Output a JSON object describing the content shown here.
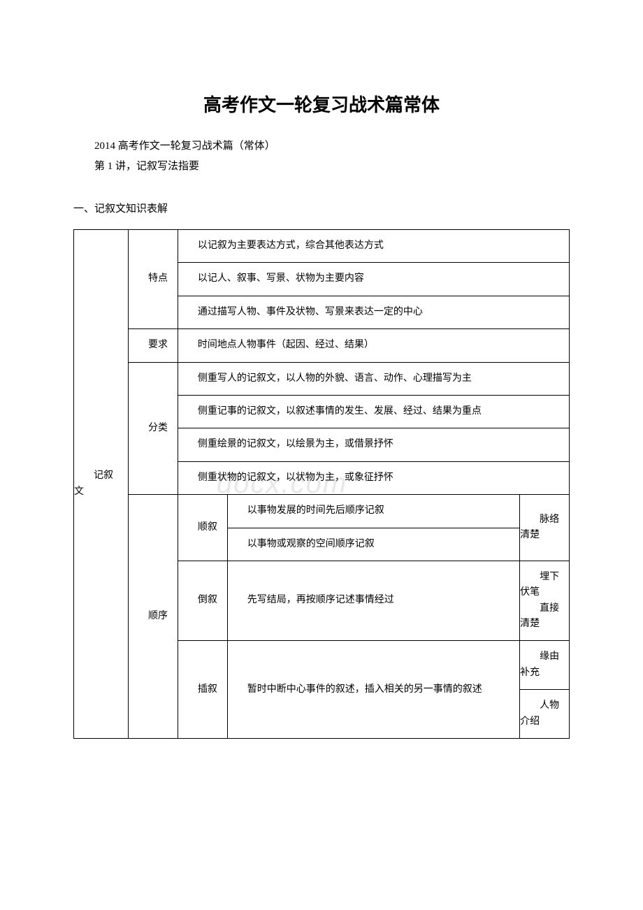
{
  "title": "高考作文一轮复习战术篇常体",
  "subtitle1": "2014 高考作文一轮复习战术篇（常体）",
  "subtitle2": "第 1 讲，记叙写法指要",
  "section_heading": "一、记叙文知识表解",
  "table": {
    "main_label": "记叙文",
    "r1": {
      "label": "特点",
      "line1": "以记叙为主要表达方式，综合其他表达方式",
      "line2": "以记人、叙事、写景、状物为主要内容",
      "line3": "通过描写人物、事件及状物、写景来表达一定的中心"
    },
    "r2": {
      "label": "要求",
      "content": "时间地点人物事件（起因、经过、结果）"
    },
    "r3": {
      "label": "分类",
      "line1": "侧重写人的记叙文，以人物的外貌、语言、动作、心理描写为主",
      "line2": "侧重记事的记叙文，以叙述事情的发生、发展、经过、结果为重点",
      "line3": "侧重绘景的记叙文，以绘景为主，或借景抒怀",
      "line4": "侧重状物的记叙文，以状物为主，或象征抒怀"
    },
    "r4": {
      "label": "顺序",
      "shun": {
        "label": "顺叙",
        "line1": "以事物发展的时间先后顺序记叙",
        "line2": "以事物或观察的空间顺序记叙",
        "effect": "脉络清楚"
      },
      "dao": {
        "label": "倒叙",
        "content": "先写结局，再按顺序记述事情经过",
        "effect1": "埋下伏笔",
        "effect2": "直接清楚"
      },
      "cha": {
        "label": "插叙",
        "content": "暂时中断中心事件的叙述，插入相关的另一事情的叙述",
        "effect1": "缘由补充",
        "effect2": "人物介绍"
      }
    }
  },
  "watermark": "docx.com"
}
